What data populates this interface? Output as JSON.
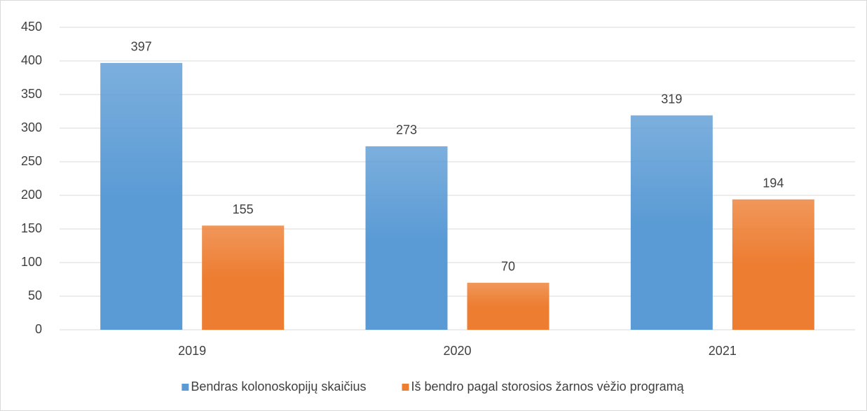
{
  "chart_data": {
    "type": "bar",
    "categories": [
      "2019",
      "2020",
      "2021"
    ],
    "series": [
      {
        "name": "Bendras kolonoskopijų skaičius",
        "color": "#5b9bd5",
        "values": [
          397,
          273,
          319
        ]
      },
      {
        "name": "Iš bendro pagal storosios žarnos vėžio programą",
        "color": "#ed7d31",
        "values": [
          155,
          70,
          194
        ]
      }
    ],
    "ylim": [
      0,
      450
    ],
    "yticks": [
      0,
      50,
      100,
      150,
      200,
      250,
      300,
      350,
      400,
      450
    ],
    "grid": true,
    "legend": "bottom",
    "data_labels": true
  }
}
